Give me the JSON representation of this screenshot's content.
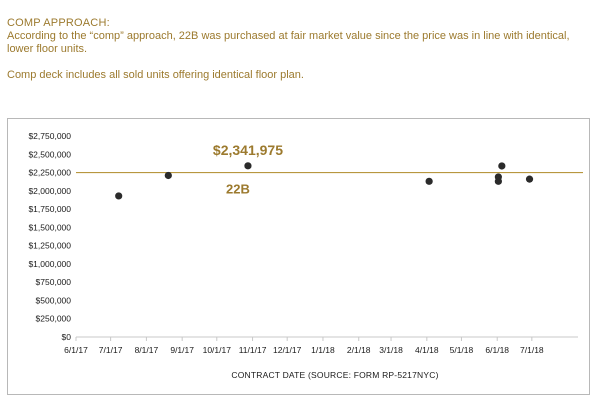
{
  "intro": {
    "title": "COMP APPROACH:",
    "paragraph1": "According to the “comp” approach, 22B was purchased at fair market value since the price was in line with identical, lower floor units.",
    "paragraph2": "Comp deck includes all sold units offering identical floor plan."
  },
  "chart_data": {
    "type": "scatter",
    "xlabel": "CONTRACT DATE (SOURCE: FORM RP-5217NYC)",
    "ylabel": "",
    "x_ticks": [
      "6/1/17",
      "7/1/17",
      "8/1/17",
      "9/1/17",
      "10/1/17",
      "11/1/17",
      "12/1/17",
      "1/1/18",
      "2/1/18",
      "3/1/18",
      "4/1/18",
      "5/1/18",
      "6/1/18",
      "7/1/18"
    ],
    "y_ticks": [
      "$0",
      "$250,000",
      "$500,000",
      "$750,000",
      "$1,000,000",
      "$1,250,000",
      "$1,500,000",
      "$1,750,000",
      "$2,000,000",
      "$2,250,000",
      "$2,500,000",
      "$2,750,000"
    ],
    "xlim": [
      "2017-06-01",
      "2018-08-10"
    ],
    "ylim": [
      0,
      2750000
    ],
    "reference_line": 2250000,
    "points": [
      {
        "x": "2017-07-08",
        "y": 1930000
      },
      {
        "x": "2017-08-20",
        "y": 2210000
      },
      {
        "x": "2017-10-28",
        "y": 2341975
      },
      {
        "x": "2018-04-03",
        "y": 2130000
      },
      {
        "x": "2018-06-02",
        "y": 2130000
      },
      {
        "x": "2018-06-02",
        "y": 2190000
      },
      {
        "x": "2018-06-05",
        "y": 2340000
      },
      {
        "x": "2018-06-29",
        "y": 2160000
      }
    ],
    "annotation": {
      "price": "$2,341,975",
      "unit": "22B"
    },
    "colors": {
      "accent": "#9c7a2e",
      "points": "#2b2b2b",
      "reference_line": "#b8973f"
    },
    "grid": false
  }
}
